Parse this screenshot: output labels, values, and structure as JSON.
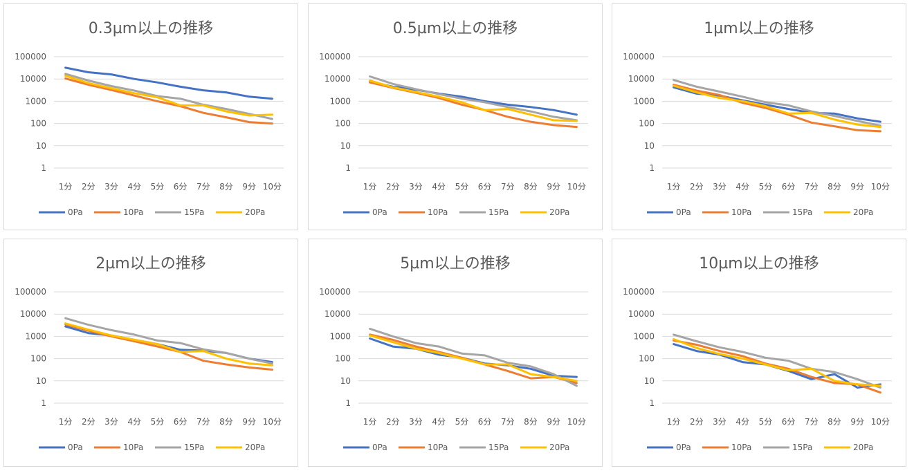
{
  "colors": {
    "0Pa": "#4472C4",
    "10Pa": "#ED7D31",
    "15Pa": "#A5A5A5",
    "20Pa": "#FFC000"
  },
  "chart_data": [
    {
      "type": "line",
      "title": "0.3µm以上の推移",
      "yscale": "log",
      "categories": [
        "1分",
        "2分",
        "3分",
        "4分",
        "5分",
        "6分",
        "7分",
        "8分",
        "9分",
        "10分"
      ],
      "ylabels": [
        "1",
        "10",
        "100",
        "1000",
        "10000",
        "100000"
      ],
      "ylim": [
        1,
        100000
      ],
      "series": [
        {
          "name": "0Pa",
          "values": [
            32000,
            20000,
            16000,
            10000,
            7000,
            4500,
            3100,
            2500,
            1600,
            1300
          ]
        },
        {
          "name": "10Pa",
          "values": [
            10500,
            5500,
            3200,
            1800,
            1000,
            600,
            300,
            190,
            115,
            100
          ]
        },
        {
          "name": "15Pa",
          "values": [
            17000,
            8500,
            4800,
            3000,
            1700,
            1300,
            700,
            450,
            270,
            160
          ]
        },
        {
          "name": "20Pa",
          "values": [
            14000,
            6500,
            3800,
            2300,
            1500,
            650,
            650,
            350,
            230,
            250
          ]
        }
      ]
    },
    {
      "type": "line",
      "title": "0.5µm以上の推移",
      "yscale": "log",
      "categories": [
        "1分",
        "2分",
        "3分",
        "4分",
        "5分",
        "6分",
        "7分",
        "8分",
        "9分",
        "10分"
      ],
      "ylabels": [
        "1",
        "10",
        "100",
        "1000",
        "10000",
        "100000"
      ],
      "ylim": [
        1,
        100000
      ],
      "series": [
        {
          "name": "0Pa",
          "values": [
            7500,
            4500,
            3300,
            2200,
            1600,
            1000,
            700,
            550,
            400,
            250
          ]
        },
        {
          "name": "10Pa",
          "values": [
            7000,
            4000,
            2400,
            1400,
            700,
            400,
            200,
            120,
            85,
            70
          ]
        },
        {
          "name": "15Pa",
          "values": [
            13000,
            6000,
            3500,
            2100,
            1300,
            900,
            550,
            350,
            200,
            140
          ]
        },
        {
          "name": "20Pa",
          "values": [
            8500,
            4200,
            2600,
            1600,
            900,
            400,
            450,
            250,
            140,
            130
          ]
        }
      ]
    },
    {
      "type": "line",
      "title": "1µm以上の推移",
      "yscale": "log",
      "categories": [
        "1分",
        "2分",
        "3分",
        "4分",
        "5分",
        "6分",
        "7分",
        "8分",
        "9分",
        "10分"
      ],
      "ylabels": [
        "1",
        "10",
        "100",
        "1000",
        "10000",
        "100000"
      ],
      "ylim": [
        1,
        100000
      ],
      "series": [
        {
          "name": "0Pa",
          "values": [
            4200,
            2200,
            1800,
            1100,
            700,
            450,
            300,
            280,
            170,
            120
          ]
        },
        {
          "name": "10Pa",
          "values": [
            5500,
            3000,
            1900,
            850,
            500,
            250,
            110,
            75,
            50,
            45
          ]
        },
        {
          "name": "15Pa",
          "values": [
            9000,
            4500,
            2700,
            1600,
            900,
            650,
            350,
            220,
            130,
            80
          ]
        },
        {
          "name": "20Pa",
          "values": [
            5000,
            2500,
            1400,
            1000,
            600,
            280,
            300,
            150,
            90,
            70
          ]
        }
      ]
    },
    {
      "type": "line",
      "title": "2µm以上の推移",
      "yscale": "log",
      "categories": [
        "1分",
        "2分",
        "3分",
        "4分",
        "5分",
        "6分",
        "7分",
        "8分",
        "9分",
        "10分"
      ],
      "ylabels": [
        "1",
        "10",
        "100",
        "1000",
        "10000",
        "100000"
      ],
      "ylim": [
        1,
        100000
      ],
      "series": [
        {
          "name": "0Pa",
          "values": [
            2800,
            1400,
            1100,
            700,
            450,
            250,
            230,
            180,
            100,
            70
          ]
        },
        {
          "name": "10Pa",
          "values": [
            3500,
            1800,
            1000,
            600,
            350,
            200,
            80,
            55,
            40,
            32
          ]
        },
        {
          "name": "15Pa",
          "values": [
            6500,
            3300,
            1900,
            1200,
            650,
            500,
            260,
            180,
            100,
            60
          ]
        },
        {
          "name": "20Pa",
          "values": [
            3800,
            2000,
            1100,
            700,
            450,
            200,
            220,
            100,
            60,
            50
          ]
        }
      ]
    },
    {
      "type": "line",
      "title": "5µm以上の推移",
      "yscale": "log",
      "categories": [
        "1分",
        "2分",
        "3分",
        "4分",
        "5分",
        "6分",
        "7分",
        "8分",
        "9分",
        "10分"
      ],
      "ylabels": [
        "1",
        "10",
        "100",
        "1000",
        "10000",
        "100000"
      ],
      "ylim": [
        1,
        100000
      ],
      "series": [
        {
          "name": "0Pa",
          "values": [
            800,
            350,
            280,
            150,
            110,
            60,
            50,
            35,
            17,
            15
          ]
        },
        {
          "name": "10Pa",
          "values": [
            1200,
            700,
            350,
            200,
            110,
            55,
            28,
            13,
            15,
            8
          ]
        },
        {
          "name": "15Pa",
          "values": [
            2200,
            1000,
            500,
            350,
            170,
            140,
            65,
            45,
            20,
            6
          ]
        },
        {
          "name": "20Pa",
          "values": [
            1100,
            550,
            280,
            180,
            100,
            55,
            55,
            20,
            15,
            10
          ]
        }
      ]
    },
    {
      "type": "line",
      "title": "10µm以上の推移",
      "yscale": "log",
      "categories": [
        "1分",
        "2分",
        "3分",
        "4分",
        "5分",
        "6分",
        "7分",
        "8分",
        "9分",
        "10分"
      ],
      "ylabels": [
        "1",
        "10",
        "100",
        "1000",
        "10000",
        "100000"
      ],
      "ylim": [
        1,
        100000
      ],
      "series": [
        {
          "name": "0Pa",
          "values": [
            450,
            220,
            150,
            70,
            55,
            28,
            12,
            20,
            5,
            7
          ]
        },
        {
          "name": "10Pa",
          "values": [
            650,
            420,
            220,
            130,
            60,
            35,
            15,
            8,
            7,
            3
          ]
        },
        {
          "name": "15Pa",
          "values": [
            1200,
            600,
            320,
            200,
            110,
            80,
            35,
            25,
            12,
            5
          ]
        },
        {
          "name": "20Pa",
          "values": [
            750,
            300,
            160,
            100,
            55,
            30,
            35,
            10,
            7,
            6
          ]
        }
      ]
    }
  ]
}
